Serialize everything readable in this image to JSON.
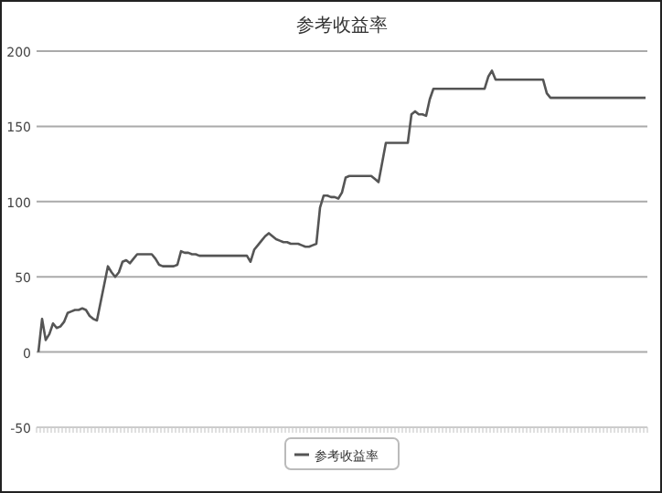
{
  "chart_data": {
    "type": "line",
    "title": "参考收益率",
    "categories": [
      null,
      null,
      null,
      null,
      null,
      null,
      null,
      null,
      null,
      null,
      null,
      null,
      null,
      null,
      null,
      null,
      null,
      null,
      null,
      null,
      null,
      null,
      null,
      null,
      null,
      null,
      null,
      null,
      null,
      null,
      null,
      null,
      null,
      null,
      null,
      null,
      null,
      null,
      null,
      null,
      null,
      null,
      null,
      null,
      null,
      null,
      null,
      null,
      null,
      null,
      null,
      null,
      null,
      null,
      null,
      null,
      null,
      null,
      null,
      null,
      null,
      null,
      null,
      null,
      null,
      null,
      null,
      null,
      null,
      null,
      null,
      null,
      null,
      null,
      null,
      null,
      null,
      null,
      null,
      null,
      null,
      null,
      null,
      null,
      null,
      null,
      null,
      null,
      null,
      null,
      null,
      null,
      null,
      null,
      null,
      null,
      null,
      null,
      null,
      null,
      null,
      null,
      null,
      null,
      null,
      null,
      null,
      null,
      null,
      null,
      null,
      null,
      null,
      null,
      null,
      null,
      null,
      null,
      null,
      null,
      null,
      null,
      null,
      null,
      null,
      null,
      null,
      null,
      null,
      null,
      null,
      null,
      null,
      null,
      null,
      null,
      null,
      null,
      null,
      null,
      null,
      null,
      null,
      null,
      null,
      null,
      null,
      null,
      null,
      null,
      null,
      null,
      null,
      null,
      null,
      null,
      null,
      null,
      null,
      null,
      null,
      null,
      null,
      null,
      null,
      null,
      null
    ],
    "series": [
      {
        "name": "参考收益率",
        "color": "#555555",
        "values": [
          0,
          22,
          8,
          12,
          19,
          16,
          17,
          20,
          26,
          27,
          28,
          28,
          29,
          28,
          24,
          22,
          21,
          33,
          45,
          57,
          53,
          50,
          53,
          60,
          61,
          59,
          62,
          65,
          65,
          65,
          65,
          65,
          62,
          58,
          57,
          57,
          57,
          57,
          58,
          67,
          66,
          66,
          65,
          65,
          64,
          64,
          64,
          64,
          64,
          64,
          64,
          64,
          64,
          64,
          64,
          64,
          64,
          64,
          60,
          68,
          71,
          74,
          77,
          79,
          77,
          75,
          74,
          73,
          73,
          72,
          72,
          72,
          71,
          70,
          70,
          71,
          72,
          96,
          104,
          104,
          103,
          103,
          102,
          106,
          116,
          117,
          117,
          117,
          117,
          117,
          117,
          117,
          115,
          113,
          126,
          139,
          139,
          139,
          139,
          139,
          139,
          139,
          158,
          160,
          158,
          158,
          157,
          168,
          175,
          175,
          175,
          175,
          175,
          175,
          175,
          175,
          175,
          175,
          175,
          175,
          175,
          175,
          175,
          183,
          187,
          181,
          181,
          181,
          181,
          181,
          181,
          181,
          181,
          181,
          181,
          181,
          181,
          181,
          181,
          172,
          169,
          169,
          169,
          169,
          169,
          169,
          169,
          169,
          169,
          169,
          169,
          169,
          169,
          169,
          169,
          169,
          169,
          169,
          169,
          169,
          169,
          169,
          169,
          169,
          169,
          169,
          169
        ]
      }
    ],
    "ylim": [
      -50,
      200
    ],
    "yticks": [
      -50,
      0,
      50,
      100,
      150,
      200
    ],
    "grid": "y",
    "legend": "bottom"
  }
}
